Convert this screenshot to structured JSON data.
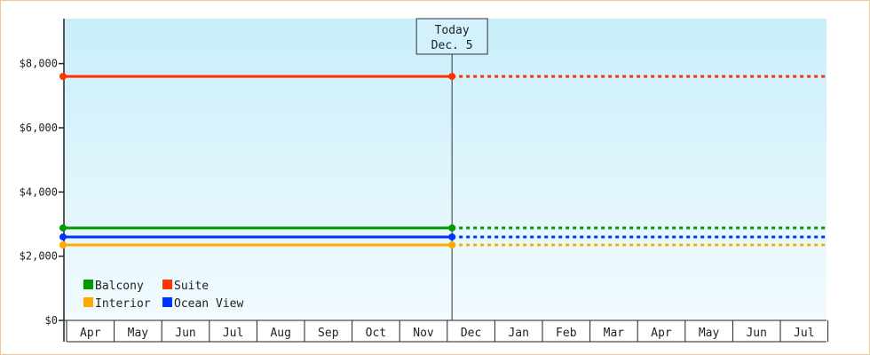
{
  "chart_data": {
    "type": "line",
    "title": "",
    "xlabel": "",
    "ylabel": "",
    "ylim": [
      0,
      9400
    ],
    "yticks": [
      0,
      2000,
      4000,
      6000,
      8000
    ],
    "ytick_labels": [
      "$0",
      "$2,000",
      "$4,000",
      "$6,000",
      "$8,000"
    ],
    "categories": [
      "Apr",
      "May",
      "Jun",
      "Jul",
      "Aug",
      "Sep",
      "Oct",
      "Nov",
      "Dec",
      "Jan",
      "Feb",
      "Mar",
      "Apr",
      "May",
      "Jun",
      "Jul"
    ],
    "today": {
      "line1": "Today",
      "line2": "Dec. 5",
      "month_index": 8.1
    },
    "series": [
      {
        "name": "Suite",
        "color": "#ff3300",
        "value": 7600
      },
      {
        "name": "Balcony",
        "color": "#009900",
        "value": 2880
      },
      {
        "name": "Ocean View",
        "color": "#0033ff",
        "value": 2600
      },
      {
        "name": "Interior",
        "color": "#ffaa00",
        "value": 2350
      }
    ],
    "legend": {
      "placement": "bottom-left",
      "rows": [
        [
          "Balcony",
          "Suite"
        ],
        [
          "Interior",
          "Ocean View"
        ]
      ]
    },
    "grid": false
  }
}
